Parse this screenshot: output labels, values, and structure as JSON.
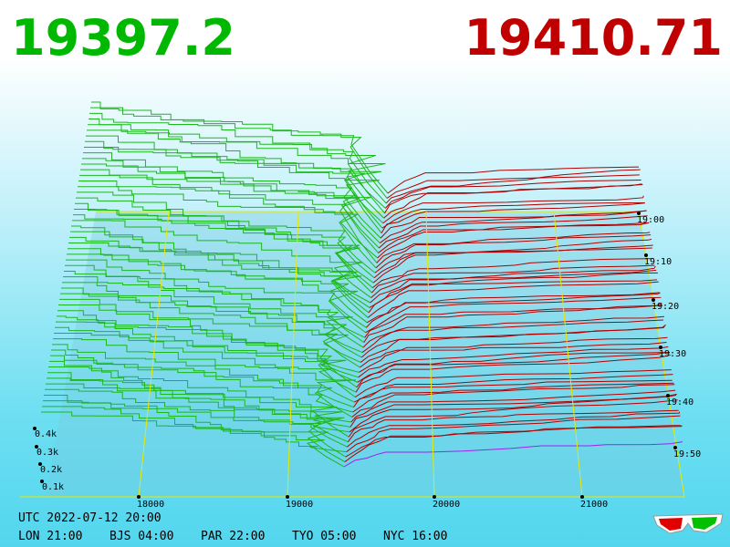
{
  "bid_price": "19397.2",
  "ask_price": "19410.71",
  "price_axis": [
    "18000",
    "19000",
    "20000",
    "21000"
  ],
  "depth_axis": [
    "0.4k",
    "0.3k",
    "0.2k",
    "0.1k"
  ],
  "time_axis": [
    "19:00",
    "19:10",
    "19:20",
    "19:30",
    "19:40",
    "19:50"
  ],
  "footer": {
    "utc": "UTC 2022-07-12 20:00",
    "zones": [
      "LON 21:00",
      "BJS 04:00",
      "PAR 22:00",
      "TYO 05:00",
      "NYC 16:00"
    ]
  }
}
